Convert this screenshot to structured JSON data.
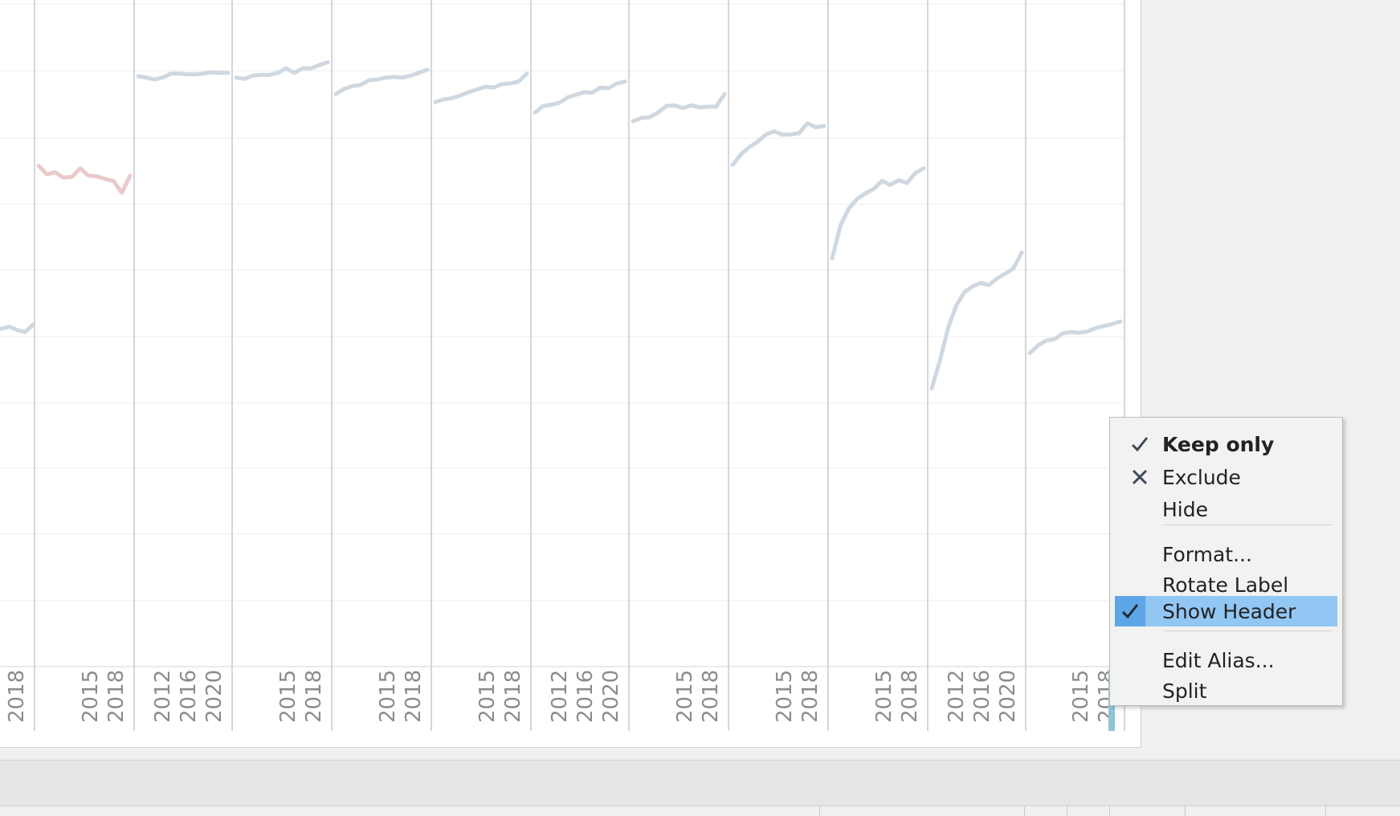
{
  "chart_data": {
    "type": "line",
    "panels": [
      {
        "x_tick_labels": [
          "2018"
        ],
        "x": [
          2019,
          2020,
          2021,
          2022,
          2023
        ],
        "y": [
          51,
          51.3,
          50.8,
          50.5,
          51.6
        ],
        "color": "#cfd8e0"
      },
      {
        "x_tick_labels": [
          "2015",
          "2018"
        ],
        "x": [
          2010,
          2011,
          2012,
          2013,
          2014,
          2015,
          2016,
          2017,
          2018,
          2019,
          2020,
          2021
        ],
        "y": [
          75.6,
          74.3,
          74.6,
          73.8,
          73.9,
          75.2,
          74.1,
          74,
          73.6,
          73.3,
          71.5,
          74.1
        ],
        "color": "#ebcacb"
      },
      {
        "x_tick_labels": [
          "2012",
          "2016",
          "2020"
        ],
        "x": [
          2010,
          2011,
          2012,
          2013,
          2014,
          2015,
          2016,
          2017,
          2018,
          2019,
          2020,
          2021
        ],
        "y": [
          89.1,
          88.9,
          88.6,
          88.9,
          89.5,
          89.5,
          89.4,
          89.4,
          89.5,
          89.7,
          89.6,
          89.6
        ],
        "color": "#cfd8e0"
      },
      {
        "x_tick_labels": [
          "2015",
          "2018"
        ],
        "x": [
          2010,
          2011,
          2012,
          2013,
          2014,
          2015,
          2016,
          2017,
          2018,
          2019,
          2020,
          2021
        ],
        "y": [
          88.9,
          88.7,
          89.2,
          89.3,
          89.3,
          89.6,
          90.3,
          89.6,
          90.3,
          90.3,
          90.8,
          91.2
        ],
        "color": "#cfd8e0"
      },
      {
        "x_tick_labels": [
          "2015",
          "2018"
        ],
        "x": [
          2010,
          2011,
          2012,
          2013,
          2014,
          2015,
          2016,
          2017,
          2018,
          2019,
          2020,
          2021
        ],
        "y": [
          86.4,
          87.2,
          87.6,
          87.8,
          88.5,
          88.6,
          88.9,
          89.0,
          88.9,
          89.2,
          89.6,
          90.1
        ],
        "color": "#cfd8e0"
      },
      {
        "x_tick_labels": [
          "2015",
          "2018"
        ],
        "x": [
          2010,
          2011,
          2012,
          2013,
          2014,
          2015,
          2016,
          2017,
          2018,
          2019,
          2020,
          2021
        ],
        "y": [
          85.2,
          85.6,
          85.8,
          86.2,
          86.7,
          87.1,
          87.5,
          87.4,
          87.9,
          88.0,
          88.3,
          89.5
        ],
        "color": "#cfd8e0"
      },
      {
        "x_tick_labels": [
          "2012",
          "2016",
          "2020"
        ],
        "x": [
          2010,
          2011,
          2012,
          2013,
          2014,
          2015,
          2016,
          2017,
          2018,
          2019,
          2020,
          2021
        ],
        "y": [
          83.6,
          84.6,
          84.8,
          85.1,
          85.9,
          86.3,
          86.7,
          86.6,
          87.4,
          87.3,
          88.0,
          88.3
        ],
        "color": "#cfd8e0"
      },
      {
        "x_tick_labels": [
          "2015",
          "2018"
        ],
        "x": [
          2010,
          2011,
          2012,
          2013,
          2014,
          2015,
          2016,
          2017,
          2018,
          2019,
          2020,
          2021
        ],
        "y": [
          82.3,
          82.8,
          82.9,
          83.6,
          84.6,
          84.7,
          84.3,
          84.7,
          84.4,
          84.5,
          84.5,
          86.4
        ],
        "color": "#cfd8e0"
      },
      {
        "x_tick_labels": [
          "2015",
          "2018"
        ],
        "x": [
          2010,
          2011,
          2012,
          2013,
          2014,
          2015,
          2016,
          2017,
          2018,
          2019,
          2020,
          2021
        ],
        "y": [
          75.7,
          77.3,
          78.4,
          79.2,
          80.3,
          80.8,
          80.3,
          80.3,
          80.5,
          82.0,
          81.4,
          81.6
        ],
        "color": "#cfd8e0"
      },
      {
        "x_tick_labels": [
          "2015",
          "2018"
        ],
        "x": [
          2010,
          2011,
          2012,
          2013,
          2014,
          2015,
          2016,
          2017,
          2018,
          2019,
          2020,
          2021
        ],
        "y": [
          61.6,
          66.6,
          69.1,
          70.6,
          71.4,
          72.1,
          73.3,
          72.7,
          73.4,
          73.0,
          74.5,
          75.2
        ],
        "color": "#cfd8e0"
      },
      {
        "x_tick_labels": [
          "2012",
          "2016",
          "2020"
        ],
        "x": [
          2010,
          2011,
          2012,
          2013,
          2014,
          2015,
          2016,
          2017,
          2018,
          2019,
          2020,
          2021
        ],
        "y": [
          42,
          46.2,
          51.1,
          54.5,
          56.5,
          57.4,
          57.9,
          57.6,
          58.6,
          59.3,
          60.1,
          62.5
        ],
        "color": "#cfd8e0"
      },
      {
        "x_tick_labels": [
          "2015",
          "2018"
        ],
        "x": [
          2010,
          2011,
          2012,
          2013,
          2014,
          2015,
          2016,
          2017,
          2018,
          2019,
          2020,
          2021
        ],
        "y": [
          47.3,
          48.5,
          49.2,
          49.4,
          50.3,
          50.5,
          50.4,
          50.6,
          51.1,
          51.4,
          51.7,
          52.1
        ],
        "color": "#cfd8e0"
      }
    ],
    "ylim": [
      0,
      100
    ],
    "grid": true
  },
  "context_menu": {
    "items": [
      {
        "label": "Keep only",
        "mark": "check-icon",
        "bold": true
      },
      {
        "label": "Exclude",
        "mark": "x-icon"
      },
      {
        "label": "Hide"
      },
      {
        "label": "Format..."
      },
      {
        "label": "Rotate Label"
      },
      {
        "label": "Show Header",
        "mark": "check-icon",
        "highlighted": true
      },
      {
        "label": "Edit Alias..."
      },
      {
        "label": "Split"
      }
    ],
    "highlight_color": "#92c6f3"
  }
}
